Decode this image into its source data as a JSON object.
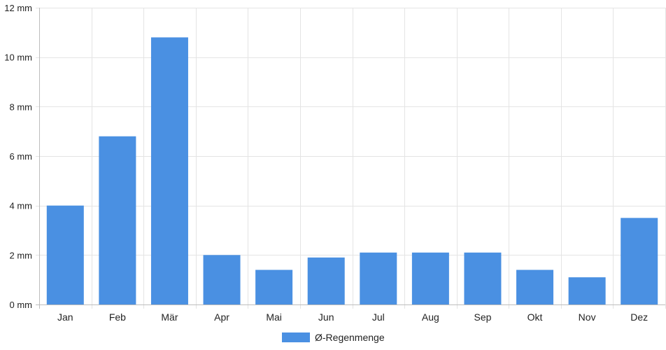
{
  "chart_data": {
    "type": "bar",
    "categories": [
      "Jan",
      "Feb",
      "Mär",
      "Apr",
      "Mai",
      "Jun",
      "Jul",
      "Aug",
      "Sep",
      "Okt",
      "Nov",
      "Dez"
    ],
    "series": [
      {
        "name": "Ø-Regenmenge",
        "values": [
          4.0,
          6.8,
          10.8,
          2.0,
          1.4,
          1.9,
          2.1,
          2.1,
          2.1,
          1.4,
          1.1,
          3.5
        ],
        "color": "#4a90e2"
      }
    ],
    "y_ticks": [
      "0 mm",
      "2 mm",
      "4 mm",
      "6 mm",
      "8 mm",
      "10 mm",
      "12 mm"
    ],
    "ylim": [
      0,
      12
    ],
    "grid": true,
    "legend_position": "bottom-center",
    "title": "",
    "xlabel": "",
    "ylabel": ""
  }
}
